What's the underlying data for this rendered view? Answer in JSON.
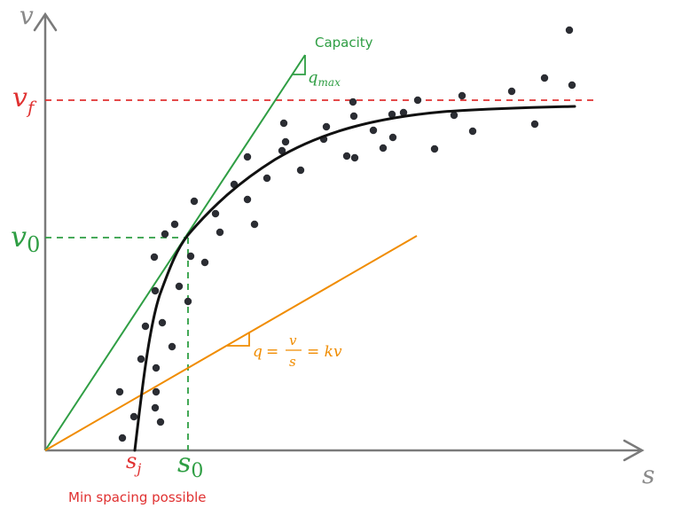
{
  "labels": {
    "y_axis": "v",
    "x_axis": "s",
    "vf_main": "v",
    "vf_sub": "f",
    "v0_main": "v",
    "v0_sub": "0",
    "sj_main": "s",
    "sj_sub": "j",
    "s0_main": "s",
    "s0_sub": "0",
    "capacity": "Capacity",
    "qmax_main": "q",
    "qmax_sub": "max",
    "flow_q": "q",
    "flow_eq1": "=",
    "flow_v": "v",
    "flow_s": "s",
    "flow_eq2": "= kv",
    "min_spacing": "Min spacing possible"
  },
  "colors": {
    "axis": "#7a7a7a",
    "red": "#e03131",
    "green": "#2f9e44",
    "orange": "#f08c00",
    "curve": "#111111",
    "points": "#2b2d33"
  }
}
